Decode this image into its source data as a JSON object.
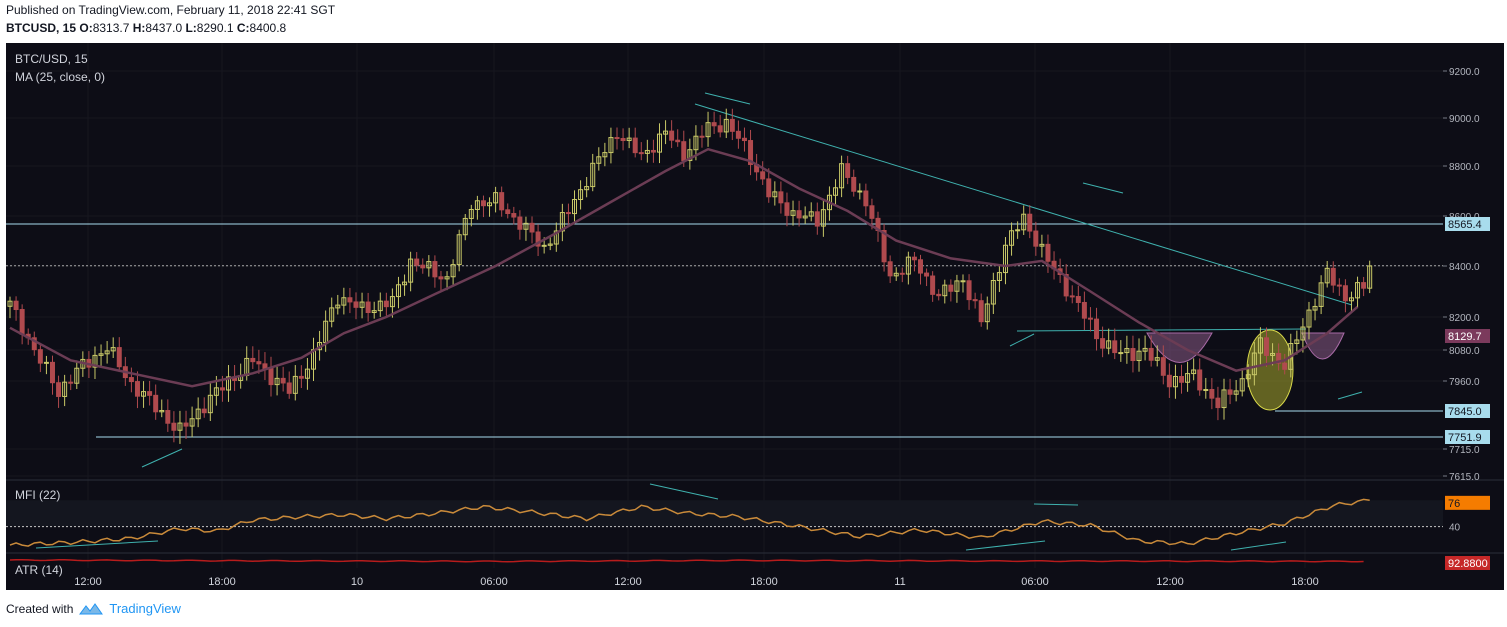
{
  "header": {
    "published": "Published on TradingView.com, February 11, 2018 22:41 SGT",
    "symbol": "BTCUSD, 15",
    "o_label": "O:",
    "o_value": "8313.7",
    "h_label": "H:",
    "h_value": "8437.0",
    "l_label": "L:",
    "l_value": "8290.1",
    "c_label": "C:",
    "c_value": "8400.8"
  },
  "legend": {
    "main_title": "BTC/USD, 15",
    "ma_label": "MA (25, close, 0)",
    "mfi_label": "MFI (22)",
    "atr_label": "ATR (14)"
  },
  "footer": {
    "created_with": "Created with",
    "brand": "TradingView"
  },
  "colors": {
    "background": "#0d0d16",
    "candle_up": "#c9c968",
    "candle_down": "#b04a4e",
    "ma_line": "#6b3c54",
    "mfi_line": "#c98a3a",
    "atr_line": "#b71c1c",
    "hline": "#a8dced",
    "trendline": "#3fb1ae"
  },
  "chart_data": [
    {
      "type": "candlestick",
      "title": "BTC/USD, 15",
      "x_ticks": [
        "12:00",
        "18:00",
        "10",
        "06:00",
        "12:00",
        "18:00",
        "11",
        "06:00",
        "12:00",
        "18:00"
      ],
      "y_ticks": [
        9200.0,
        9000.0,
        8800.0,
        8600.0,
        8400.0,
        8200.0,
        8080.0,
        7960.0,
        7715.0,
        7615.0
      ],
      "ylim": [
        7600,
        9300
      ],
      "close_path": [
        [
          0,
          8250
        ],
        [
          4,
          8080
        ],
        [
          8,
          7920
        ],
        [
          12,
          8020
        ],
        [
          16,
          8090
        ],
        [
          20,
          7950
        ],
        [
          24,
          7860
        ],
        [
          28,
          7770
        ],
        [
          32,
          7870
        ],
        [
          36,
          7960
        ],
        [
          40,
          8040
        ],
        [
          46,
          7920
        ],
        [
          50,
          8060
        ],
        [
          54,
          8280
        ],
        [
          58,
          8230
        ],
        [
          63,
          8260
        ],
        [
          66,
          8420
        ],
        [
          72,
          8350
        ],
        [
          76,
          8650
        ],
        [
          80,
          8660
        ],
        [
          84,
          8570
        ],
        [
          88,
          8470
        ],
        [
          92,
          8620
        ],
        [
          96,
          8790
        ],
        [
          100,
          8940
        ],
        [
          104,
          8840
        ],
        [
          108,
          8940
        ],
        [
          111,
          8850
        ],
        [
          115,
          8960
        ],
        [
          118,
          8980
        ],
        [
          121,
          8880
        ],
        [
          125,
          8690
        ],
        [
          129,
          8610
        ],
        [
          133,
          8580
        ],
        [
          137,
          8780
        ],
        [
          141,
          8660
        ],
        [
          145,
          8360
        ],
        [
          149,
          8420
        ],
        [
          153,
          8280
        ],
        [
          157,
          8350
        ],
        [
          160,
          8180
        ],
        [
          164,
          8480
        ],
        [
          167,
          8590
        ],
        [
          171,
          8420
        ],
        [
          175,
          8280
        ],
        [
          179,
          8130
        ],
        [
          183,
          8060
        ],
        [
          187,
          8080
        ],
        [
          191,
          7960
        ],
        [
          195,
          7980
        ],
        [
          199,
          7870
        ],
        [
          203,
          7960
        ],
        [
          206,
          8100
        ],
        [
          210,
          8020
        ],
        [
          214,
          8220
        ],
        [
          217,
          8370
        ],
        [
          220,
          8280
        ],
        [
          224,
          8330
        ]
      ],
      "moving_average": {
        "name": "MA (25, close, 0)",
        "points": [
          [
            0,
            8160
          ],
          [
            10,
            8040
          ],
          [
            20,
            7990
          ],
          [
            30,
            7940
          ],
          [
            40,
            7990
          ],
          [
            48,
            8050
          ],
          [
            55,
            8140
          ],
          [
            62,
            8200
          ],
          [
            70,
            8290
          ],
          [
            80,
            8400
          ],
          [
            90,
            8530
          ],
          [
            100,
            8670
          ],
          [
            108,
            8780
          ],
          [
            115,
            8870
          ],
          [
            122,
            8820
          ],
          [
            130,
            8710
          ],
          [
            138,
            8620
          ],
          [
            146,
            8500
          ],
          [
            155,
            8430
          ],
          [
            164,
            8400
          ],
          [
            170,
            8420
          ],
          [
            178,
            8300
          ],
          [
            186,
            8180
          ],
          [
            194,
            8080
          ],
          [
            202,
            8000
          ],
          [
            210,
            8040
          ],
          [
            217,
            8140
          ],
          [
            222,
            8240
          ]
        ]
      },
      "horizontal_levels": [
        8565.4,
        7845.0,
        7751.9
      ],
      "price_labels": [
        {
          "text": "8565.4",
          "value": 8565.4,
          "style": "level"
        },
        {
          "text": "8400.8",
          "value": 8400.8,
          "style": "current"
        },
        {
          "text": "8129.7",
          "value": 8129.7,
          "style": "ma"
        },
        {
          "text": "7845.0",
          "value": 7845.0,
          "style": "level"
        },
        {
          "text": "7751.9",
          "value": 7751.9,
          "style": "level"
        }
      ]
    },
    {
      "type": "line",
      "title": "MFI (22)",
      "ylim": [
        0,
        100
      ],
      "y_ticks": [
        40
      ],
      "band": [
        40,
        80
      ],
      "last_value_label": "76",
      "points": [
        [
          0,
          12
        ],
        [
          10,
          16
        ],
        [
          20,
          22
        ],
        [
          28,
          37
        ],
        [
          34,
          33
        ],
        [
          40,
          50
        ],
        [
          48,
          55
        ],
        [
          55,
          58
        ],
        [
          62,
          52
        ],
        [
          70,
          60
        ],
        [
          78,
          70
        ],
        [
          86,
          62
        ],
        [
          95,
          52
        ],
        [
          104,
          70
        ],
        [
          112,
          60
        ],
        [
          120,
          55
        ],
        [
          130,
          40
        ],
        [
          140,
          25
        ],
        [
          150,
          35
        ],
        [
          160,
          23
        ],
        [
          170,
          48
        ],
        [
          178,
          42
        ],
        [
          186,
          18
        ],
        [
          194,
          14
        ],
        [
          202,
          30
        ],
        [
          210,
          45
        ],
        [
          218,
          72
        ],
        [
          224,
          80
        ]
      ]
    },
    {
      "type": "line",
      "title": "ATR (14)",
      "last_value_label": "92.8800",
      "ylim": [
        60,
        130
      ],
      "points": [
        [
          0,
          100
        ],
        [
          40,
          96
        ],
        [
          80,
          93
        ],
        [
          120,
          98
        ],
        [
          160,
          95
        ],
        [
          200,
          94
        ],
        [
          224,
          93
        ]
      ]
    }
  ]
}
